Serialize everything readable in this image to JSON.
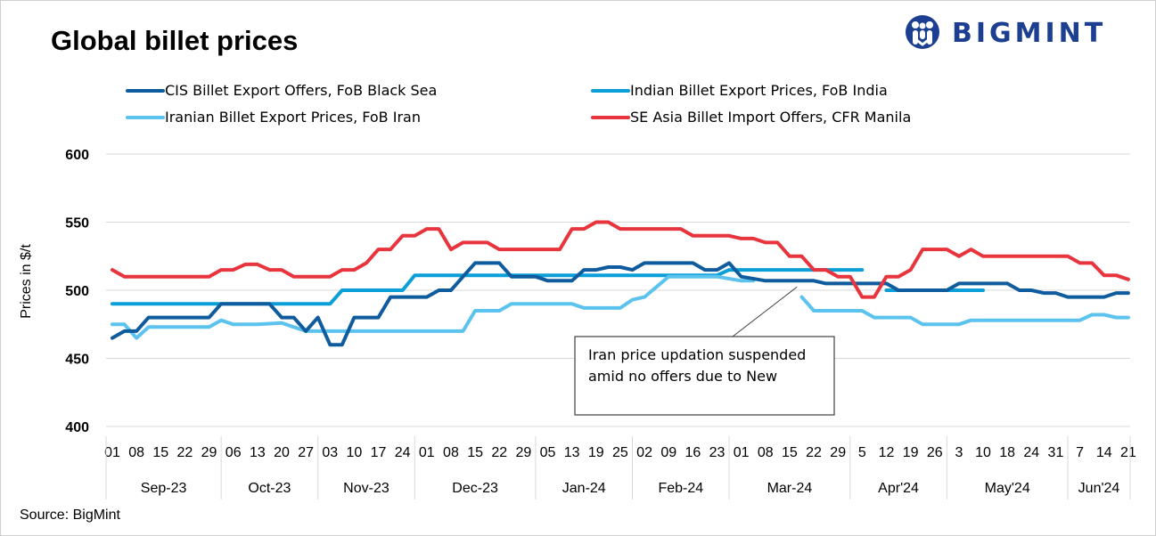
{
  "page": {
    "title": "Global billet prices",
    "source": "Source: BigMint",
    "logo_text": "BIGMINT"
  },
  "chart_data": {
    "type": "line",
    "title": "Global billet prices",
    "ylabel": "Prices in $/t",
    "xlabel": "",
    "ylim": [
      400,
      600
    ],
    "yticks": [
      400,
      450,
      500,
      550,
      600
    ],
    "grid": true,
    "legend_position": "top",
    "x_tick_labels": [
      "01",
      "08",
      "15",
      "22",
      "29",
      "06",
      "13",
      "20",
      "27",
      "03",
      "10",
      "17",
      "24",
      "01",
      "08",
      "15",
      "22",
      "29",
      "05",
      "13",
      "19",
      "25",
      "02",
      "09",
      "16",
      "23",
      "01",
      "08",
      "15",
      "22",
      "29",
      "5",
      "12",
      "19",
      "26",
      "3",
      "10",
      "18",
      "24",
      "31",
      "7",
      "14",
      "21"
    ],
    "months": [
      {
        "label": "Sep-23",
        "ticks": 5
      },
      {
        "label": "Oct-23",
        "ticks": 4
      },
      {
        "label": "Nov-23",
        "ticks": 4
      },
      {
        "label": "Dec-23",
        "ticks": 5
      },
      {
        "label": "Jan-24",
        "ticks": 4
      },
      {
        "label": "Feb-24",
        "ticks": 4
      },
      {
        "label": "Mar-24",
        "ticks": 5
      },
      {
        "label": "Apr'24",
        "ticks": 4
      },
      {
        "label": "May'24",
        "ticks": 5
      },
      {
        "label": "Jun'24",
        "ticks": 3
      }
    ],
    "series": [
      {
        "name": "CIS Billet Export Offers, FoB Black Sea",
        "color": "#0e5b9e",
        "points": [
          [
            0,
            465
          ],
          [
            0.5,
            470
          ],
          [
            1,
            470
          ],
          [
            1.5,
            480
          ],
          [
            2,
            480
          ],
          [
            3,
            480
          ],
          [
            4,
            480
          ],
          [
            4.5,
            490
          ],
          [
            5,
            490
          ],
          [
            6,
            490
          ],
          [
            6.5,
            490
          ],
          [
            7,
            480
          ],
          [
            7.5,
            480
          ],
          [
            8,
            470
          ],
          [
            8.5,
            480
          ],
          [
            9,
            460
          ],
          [
            9.5,
            460
          ],
          [
            10,
            480
          ],
          [
            11,
            480
          ],
          [
            11.5,
            495
          ],
          [
            12,
            495
          ],
          [
            13,
            495
          ],
          [
            13.5,
            500
          ],
          [
            14,
            500
          ],
          [
            14.5,
            510
          ],
          [
            15,
            520
          ],
          [
            16,
            520
          ],
          [
            16.5,
            510
          ],
          [
            17,
            510
          ],
          [
            17.5,
            510
          ],
          [
            18,
            507
          ],
          [
            19,
            507
          ],
          [
            19.5,
            515
          ],
          [
            20,
            515
          ],
          [
            20.5,
            517
          ],
          [
            21,
            517
          ],
          [
            21.5,
            515
          ],
          [
            22,
            520
          ],
          [
            23,
            520
          ],
          [
            24,
            520
          ],
          [
            24.5,
            515
          ],
          [
            25,
            515
          ],
          [
            25.5,
            520
          ],
          [
            26,
            510
          ],
          [
            27,
            507
          ],
          [
            28,
            507
          ],
          [
            29,
            507
          ],
          [
            29.5,
            505
          ],
          [
            30,
            505
          ],
          [
            31,
            505
          ],
          [
            32,
            505
          ],
          [
            32.5,
            500
          ],
          [
            33,
            500
          ],
          [
            34,
            500
          ],
          [
            34.5,
            500
          ],
          [
            35,
            505
          ],
          [
            36,
            505
          ],
          [
            37,
            505
          ],
          [
            37.5,
            500
          ],
          [
            38,
            500
          ],
          [
            38.5,
            498
          ],
          [
            39,
            498
          ],
          [
            39.5,
            495
          ],
          [
            40,
            495
          ],
          [
            41,
            495
          ],
          [
            41.5,
            498
          ],
          [
            42,
            498
          ]
        ]
      },
      {
        "name": "Indian Billet Export Prices, FoB India",
        "color": "#0b9fd8",
        "segments": [
          [
            [
              0,
              490
            ],
            [
              9,
              490
            ],
            [
              9.5,
              500
            ],
            [
              12,
              500
            ],
            [
              12.5,
              511
            ],
            [
              14,
              511
            ],
            [
              25,
              511
            ],
            [
              25.5,
              515
            ],
            [
              31,
              515
            ]
          ],
          [
            [
              32,
              500
            ],
            [
              36,
              500
            ]
          ]
        ]
      },
      {
        "name": "Iranian Billet Export Prices, FoB Iran",
        "color": "#5cc3ee",
        "segments": [
          [
            [
              0,
              475
            ],
            [
              0.5,
              475
            ],
            [
              1,
              465
            ],
            [
              1.5,
              473
            ],
            [
              2,
              473
            ],
            [
              3,
              473
            ],
            [
              4,
              473
            ],
            [
              4.5,
              478
            ],
            [
              5,
              475
            ],
            [
              6,
              475
            ],
            [
              7,
              476
            ],
            [
              7.5,
              473
            ],
            [
              8,
              470
            ],
            [
              9,
              470
            ],
            [
              10,
              470
            ],
            [
              11,
              470
            ],
            [
              12,
              470
            ],
            [
              13,
              470
            ],
            [
              14,
              470
            ],
            [
              14.5,
              470
            ],
            [
              15,
              485
            ],
            [
              16,
              485
            ],
            [
              16.5,
              490
            ],
            [
              18,
              490
            ],
            [
              19,
              490
            ],
            [
              19.5,
              487
            ],
            [
              20,
              487
            ],
            [
              21,
              487
            ],
            [
              21.5,
              493
            ],
            [
              22,
              495
            ],
            [
              23,
              510
            ],
            [
              24,
              510
            ],
            [
              25,
              510
            ],
            [
              26,
              507
            ],
            [
              26.5,
              507
            ]
          ],
          [
            [
              28.5,
              495
            ],
            [
              29,
              485
            ],
            [
              30,
              485
            ],
            [
              31,
              485
            ],
            [
              31.5,
              480
            ],
            [
              32,
              480
            ],
            [
              33,
              480
            ],
            [
              33.5,
              475
            ],
            [
              34,
              475
            ],
            [
              35,
              475
            ],
            [
              35.5,
              478
            ],
            [
              36,
              478
            ],
            [
              37,
              478
            ],
            [
              38,
              478
            ],
            [
              39,
              478
            ],
            [
              40,
              478
            ],
            [
              40.5,
              482
            ],
            [
              41,
              482
            ],
            [
              41.5,
              480
            ],
            [
              42,
              480
            ]
          ]
        ]
      },
      {
        "name": "SE Asia Billet Import Offers, CFR Manila",
        "color": "#e8343c",
        "points": [
          [
            0,
            515
          ],
          [
            0.5,
            510
          ],
          [
            1,
            510
          ],
          [
            2,
            510
          ],
          [
            3,
            510
          ],
          [
            4,
            510
          ],
          [
            4.5,
            515
          ],
          [
            5,
            515
          ],
          [
            5.5,
            519
          ],
          [
            6,
            519
          ],
          [
            6.5,
            515
          ],
          [
            7,
            515
          ],
          [
            7.5,
            510
          ],
          [
            8,
            510
          ],
          [
            9,
            510
          ],
          [
            9.5,
            515
          ],
          [
            10,
            515
          ],
          [
            10.5,
            520
          ],
          [
            11,
            530
          ],
          [
            11.5,
            530
          ],
          [
            12,
            540
          ],
          [
            12.5,
            540
          ],
          [
            13,
            545
          ],
          [
            13.5,
            545
          ],
          [
            14,
            530
          ],
          [
            14.5,
            535
          ],
          [
            15,
            535
          ],
          [
            15.5,
            535
          ],
          [
            16,
            530
          ],
          [
            17,
            530
          ],
          [
            18,
            530
          ],
          [
            18.5,
            530
          ],
          [
            19,
            545
          ],
          [
            19.5,
            545
          ],
          [
            20,
            550
          ],
          [
            20.5,
            550
          ],
          [
            21,
            545
          ],
          [
            22,
            545
          ],
          [
            23,
            545
          ],
          [
            23.5,
            545
          ],
          [
            24,
            540
          ],
          [
            25,
            540
          ],
          [
            25.5,
            540
          ],
          [
            26,
            538
          ],
          [
            26.5,
            538
          ],
          [
            27,
            535
          ],
          [
            27.5,
            535
          ],
          [
            28,
            525
          ],
          [
            28.5,
            525
          ],
          [
            29,
            515
          ],
          [
            29.5,
            515
          ],
          [
            30,
            510
          ],
          [
            30.5,
            510
          ],
          [
            31,
            495
          ],
          [
            31.5,
            495
          ],
          [
            32,
            510
          ],
          [
            32.5,
            510
          ],
          [
            33,
            515
          ],
          [
            33.5,
            530
          ],
          [
            34,
            530
          ],
          [
            34.5,
            530
          ],
          [
            35,
            525
          ],
          [
            35.5,
            530
          ],
          [
            36,
            525
          ],
          [
            37,
            525
          ],
          [
            38,
            525
          ],
          [
            39,
            525
          ],
          [
            39.5,
            525
          ],
          [
            40,
            520
          ],
          [
            40.5,
            520
          ],
          [
            41,
            511
          ],
          [
            41.5,
            511
          ],
          [
            42,
            508
          ]
        ]
      }
    ],
    "annotation": {
      "text_lines": [
        "Iran price updation suspended",
        "amid no offers due to New"
      ],
      "points_to_x": 28.3,
      "points_to_y": 505
    }
  }
}
